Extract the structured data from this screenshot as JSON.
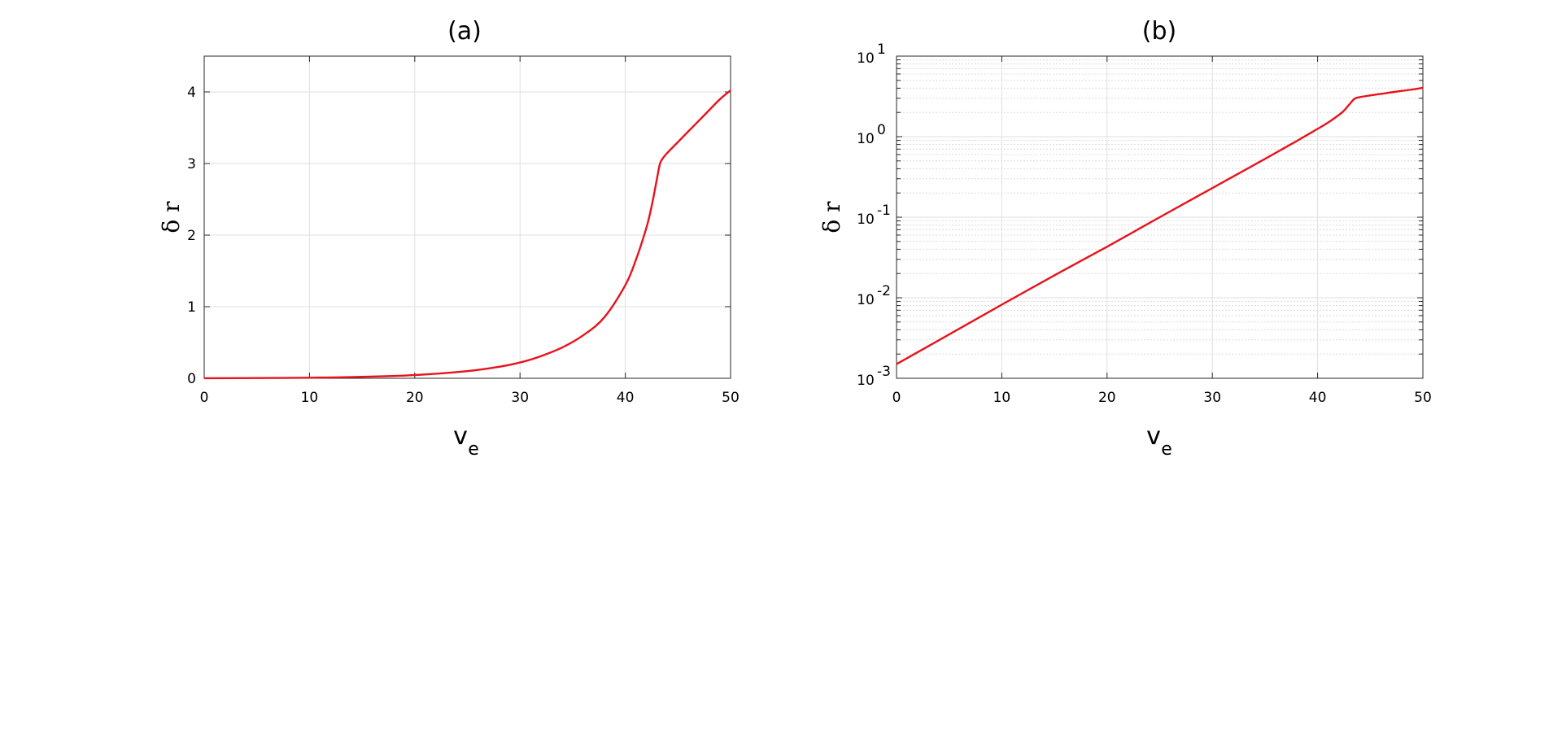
{
  "chart_data": [
    {
      "panel": "a",
      "type": "line",
      "title": "(a)",
      "xlabel_main": "v",
      "xlabel_sub": "e",
      "ylabel": "δ r",
      "xlim": [
        0,
        50
      ],
      "ylim": [
        0,
        4.5
      ],
      "yscale": "linear",
      "grid": true,
      "xticks": [
        0,
        10,
        20,
        30,
        40,
        50
      ],
      "yticks": [
        0,
        1,
        2,
        3,
        4
      ],
      "series": [
        {
          "color": "#e8121b",
          "x": [
            0,
            5,
            10,
            15,
            20,
            25,
            28,
            30,
            32,
            34,
            36,
            38,
            40,
            41,
            42,
            42.5,
            43,
            43.3,
            43.6,
            44,
            45,
            46,
            47,
            48,
            49,
            50
          ],
          "y": [
            0.0015,
            0.0036,
            0.0085,
            0.02,
            0.045,
            0.1,
            0.16,
            0.22,
            0.31,
            0.43,
            0.6,
            0.85,
            1.3,
            1.65,
            2.1,
            2.4,
            2.78,
            3.0,
            3.08,
            3.15,
            3.3,
            3.45,
            3.6,
            3.75,
            3.9,
            4.02
          ]
        }
      ]
    },
    {
      "panel": "b",
      "type": "line",
      "title": "(b)",
      "xlabel_main": "v",
      "xlabel_sub": "e",
      "ylabel": "δ r",
      "xlim": [
        0,
        50
      ],
      "ylim": [
        0.001,
        10
      ],
      "yscale": "log",
      "grid": true,
      "minor_grid": true,
      "xticks": [
        0,
        10,
        20,
        30,
        40,
        50
      ],
      "yticks": [
        0.001,
        0.01,
        0.1,
        1,
        10
      ],
      "ytick_labels": [
        {
          "base": "10",
          "exp": "-3"
        },
        {
          "base": "10",
          "exp": "-2"
        },
        {
          "base": "10",
          "exp": "-1"
        },
        {
          "base": "10",
          "exp": "0"
        },
        {
          "base": "10",
          "exp": "1"
        }
      ],
      "series": [
        {
          "color": "#e8121b",
          "x": [
            0,
            5,
            10,
            15,
            20,
            25,
            30,
            35,
            38,
            40,
            41,
            42,
            42.5,
            43,
            43.5,
            44,
            45,
            46,
            47,
            48,
            49,
            50
          ],
          "y": [
            0.0015,
            0.0035,
            0.0082,
            0.019,
            0.043,
            0.1,
            0.23,
            0.53,
            0.88,
            1.25,
            1.5,
            1.85,
            2.1,
            2.5,
            2.95,
            3.1,
            3.25,
            3.4,
            3.55,
            3.7,
            3.85,
            4.05
          ]
        }
      ]
    }
  ]
}
